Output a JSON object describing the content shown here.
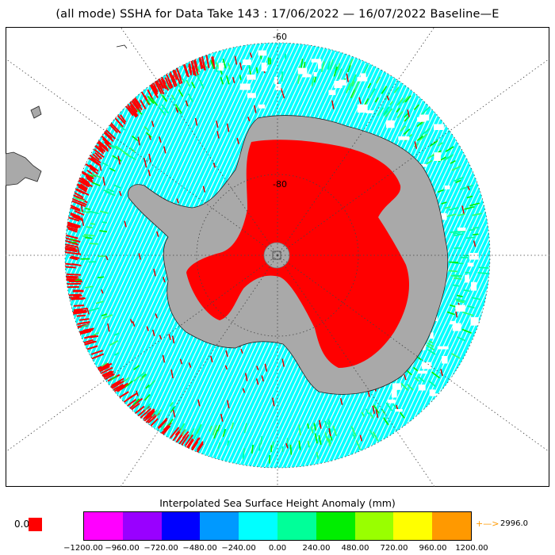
{
  "title": "(all mode) SSHA for Data Take 143 : 17/06/2022 — 16/07/2022 Baseline—E",
  "map": {
    "projection": "south-polar-stereographic",
    "latitude_labels": [
      "-60",
      "-80"
    ],
    "land_color": "#a9a9a9",
    "no_data_color": "#ffffff",
    "dominant_ocean_color": "#00ffff",
    "flagged_color": "#ff0000"
  },
  "colorbar": {
    "title": "Interpolated Sea Surface Height Anomaly (mm)",
    "colors": [
      "#ff00ff",
      "#9900ff",
      "#0000ff",
      "#0099ff",
      "#00ffff",
      "#00ff99",
      "#00ee00",
      "#99ff00",
      "#ffff00",
      "#ff9900"
    ],
    "tick_labels": [
      "−1200.00",
      "−960.00",
      "−720.00",
      "−480.00",
      "−240.00",
      "0.00",
      "240.00",
      "480.00",
      "720.00",
      "960.00",
      "1200.00"
    ],
    "no_data_label": "0.0",
    "no_data_color": "#ff0000",
    "over_range_arrow": "+—>",
    "over_range_value": "2996.0"
  }
}
